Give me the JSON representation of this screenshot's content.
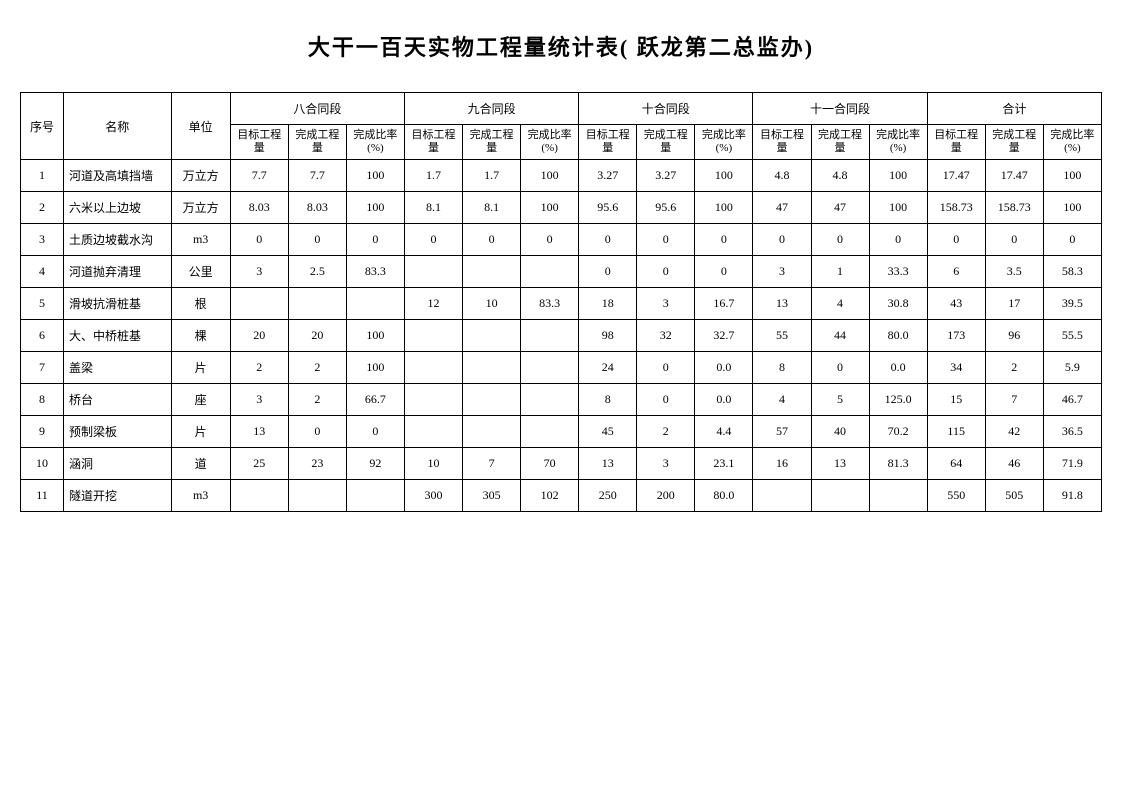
{
  "title": "大干一百天实物工程量统计表( 跃龙第二总监办)",
  "header": {
    "seq": "序号",
    "name": "名称",
    "unit": "单位",
    "groups": [
      "八合同段",
      "九合同段",
      "十合同段",
      "十一合同段",
      "合计"
    ],
    "sub": [
      "目标工程量",
      "完成工程量",
      "完成比率(%)"
    ]
  },
  "rows": [
    {
      "seq": "1",
      "name": "河道及高填挡墙",
      "unit": "万立方",
      "d": [
        "7.7",
        "7.7",
        "100",
        "1.7",
        "1.7",
        "100",
        "3.27",
        "3.27",
        "100",
        "4.8",
        "4.8",
        "100",
        "17.47",
        "17.47",
        "100"
      ]
    },
    {
      "seq": "2",
      "name": "六米以上边坡",
      "unit": "万立方",
      "d": [
        "8.03",
        "8.03",
        "100",
        "8.1",
        "8.1",
        "100",
        "95.6",
        "95.6",
        "100",
        "47",
        "47",
        "100",
        "158.73",
        "158.73",
        "100"
      ]
    },
    {
      "seq": "3",
      "name": "土质边坡截水沟",
      "unit": "m3",
      "d": [
        "0",
        "0",
        "0",
        "0",
        "0",
        "0",
        "0",
        "0",
        "0",
        "0",
        "0",
        "0",
        "0",
        "0",
        "0"
      ]
    },
    {
      "seq": "4",
      "name": "河道抛弃清理",
      "unit": "公里",
      "d": [
        "3",
        "2.5",
        "83.3",
        "",
        "",
        "",
        "0",
        "0",
        "0",
        "3",
        "1",
        "33.3",
        "6",
        "3.5",
        "58.3"
      ]
    },
    {
      "seq": "5",
      "name": "滑坡抗滑桩基",
      "unit": "根",
      "d": [
        "",
        "",
        "",
        "12",
        "10",
        "83.3",
        "18",
        "3",
        "16.7",
        "13",
        "4",
        "30.8",
        "43",
        "17",
        "39.5"
      ]
    },
    {
      "seq": "6",
      "name": "大、中桥桩基",
      "unit": "棵",
      "d": [
        "20",
        "20",
        "100",
        "",
        "",
        "",
        "98",
        "32",
        "32.7",
        "55",
        "44",
        "80.0",
        "173",
        "96",
        "55.5"
      ]
    },
    {
      "seq": "7",
      "name": "盖梁",
      "unit": "片",
      "d": [
        "2",
        "2",
        "100",
        "",
        "",
        "",
        "24",
        "0",
        "0.0",
        "8",
        "0",
        "0.0",
        "34",
        "2",
        "5.9"
      ]
    },
    {
      "seq": "8",
      "name": "桥台",
      "unit": "座",
      "d": [
        "3",
        "2",
        "66.7",
        "",
        "",
        "",
        "8",
        "0",
        "0.0",
        "4",
        "5",
        "125.0",
        "15",
        "7",
        "46.7"
      ]
    },
    {
      "seq": "9",
      "name": "预制梁板",
      "unit": "片",
      "d": [
        "13",
        "0",
        "0",
        "",
        "",
        "",
        "45",
        "2",
        "4.4",
        "57",
        "40",
        "70.2",
        "115",
        "42",
        "36.5"
      ]
    },
    {
      "seq": "10",
      "name": "涵洞",
      "unit": "道",
      "d": [
        "25",
        "23",
        "92",
        "10",
        "7",
        "70",
        "13",
        "3",
        "23.1",
        "16",
        "13",
        "81.3",
        "64",
        "46",
        "71.9"
      ]
    },
    {
      "seq": "11",
      "name": "隧道开挖",
      "unit": "m3",
      "d": [
        "",
        "",
        "",
        "300",
        "305",
        "102",
        "250",
        "200",
        "80.0",
        "",
        "",
        "",
        "550",
        "505",
        "91.8"
      ]
    }
  ]
}
